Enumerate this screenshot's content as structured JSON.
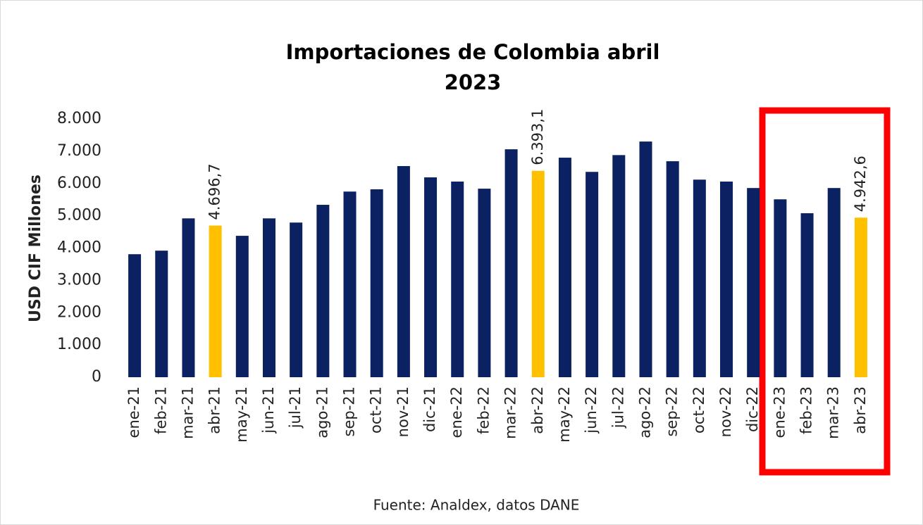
{
  "chart_data": {
    "type": "bar",
    "title": "Importaciones de Colombia abril 2023",
    "y_label": "USD CIF Millones",
    "source": "Fuente: Analdex, datos DANE",
    "categories": [
      "ene-21",
      "feb-21",
      "mar-21",
      "abr-21",
      "may-21",
      "jun-21",
      "jul-21",
      "ago-21",
      "sep-21",
      "oct-21",
      "nov-21",
      "dic-21",
      "ene-22",
      "feb-22",
      "mar-22",
      "abr-22",
      "may-22",
      "jun-22",
      "jul-22",
      "ago-22",
      "sep-22",
      "oct-22",
      "nov-22",
      "dic-22",
      "ene-23",
      "feb-23",
      "mar-23",
      "abr-23"
    ],
    "values": [
      3810,
      3920,
      4920,
      4696.7,
      4380,
      4920,
      4790,
      5340,
      5750,
      5820,
      6540,
      6190,
      6060,
      5840,
      7060,
      6393.1,
      6800,
      6360,
      6880,
      7300,
      6690,
      6120,
      6060,
      5860,
      5510,
      5080,
      5860,
      4942.6
    ],
    "value_labels": [
      null,
      null,
      null,
      "4.696,7",
      null,
      null,
      null,
      null,
      null,
      null,
      null,
      null,
      null,
      null,
      null,
      "6.393,1",
      null,
      null,
      null,
      null,
      null,
      null,
      null,
      null,
      null,
      null,
      null,
      "4.942,6"
    ],
    "colors": [
      "#0b2161",
      "#0b2161",
      "#0b2161",
      "#ffc000",
      "#0b2161",
      "#0b2161",
      "#0b2161",
      "#0b2161",
      "#0b2161",
      "#0b2161",
      "#0b2161",
      "#0b2161",
      "#0b2161",
      "#0b2161",
      "#0b2161",
      "#ffc000",
      "#0b2161",
      "#0b2161",
      "#0b2161",
      "#0b2161",
      "#0b2161",
      "#0b2161",
      "#0b2161",
      "#0b2161",
      "#0b2161",
      "#0b2161",
      "#0b2161",
      "#ffc000"
    ],
    "ylim": [
      0,
      8000
    ],
    "yticks": [
      0,
      {
        "value": 1000,
        "label": "1.000"
      },
      {
        "value": 2000,
        "label": "2.000"
      },
      {
        "value": 3000,
        "label": "3.000"
      },
      {
        "value": 4000,
        "label": "4.000"
      },
      {
        "value": 5000,
        "label": "5.000"
      },
      {
        "value": 6000,
        "label": "6.000"
      },
      {
        "value": 7000,
        "label": "7.000"
      },
      {
        "value": 8000,
        "label": "8.000"
      }
    ],
    "grid": false
  }
}
